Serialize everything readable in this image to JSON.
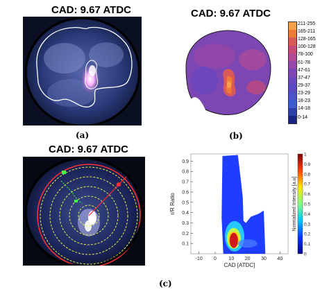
{
  "panel_a": {
    "title": "CAD: 9.67 ATDC",
    "caption": "(a)"
  },
  "panel_b": {
    "title": "CAD: 9.67 ATDC",
    "caption": "(b)",
    "colorbar": [
      "211-255",
      "165-211",
      "128-165",
      "100-128",
      "78-100",
      "61-78",
      "47-61",
      "37-47",
      "29-37",
      "23-29",
      "18-23",
      "14-18",
      "0-14"
    ],
    "colorbar_colors": [
      "#f4a24a",
      "#ee7a3a",
      "#d95858",
      "#c84a78",
      "#b04a96",
      "#9448a8",
      "#7d47b3",
      "#6a47bd",
      "#5a4ac4",
      "#4b52cb",
      "#3e5ad0",
      "#2e3ea8",
      "#1a237e"
    ]
  },
  "panel_c": {
    "title": "CAD: 9.67 ATDC",
    "caption": "(c)"
  },
  "chart_data": {
    "type": "heatmap",
    "xlabel": "CAD [ATDC]",
    "ylabel": "r/R Ratio",
    "colorbar_label": "Normalized Intensity [a.u]",
    "x_ticks": [
      "-10",
      "0",
      "10",
      "20",
      "30",
      "40"
    ],
    "y_ticks": [
      "0.1",
      "0.2",
      "0.3",
      "0.4",
      "0.5",
      "0.6",
      "0.7",
      "0.8",
      "0.9"
    ],
    "cb_ticks": [
      "0",
      "0.1",
      "0.2",
      "0.3",
      "0.4",
      "0.5",
      "0.6",
      "0.7",
      "0.8",
      "0.9",
      "1"
    ],
    "xlim": [
      -15,
      45
    ],
    "ylim": [
      0.0,
      0.97
    ],
    "colorbar_range": [
      0,
      1
    ]
  }
}
